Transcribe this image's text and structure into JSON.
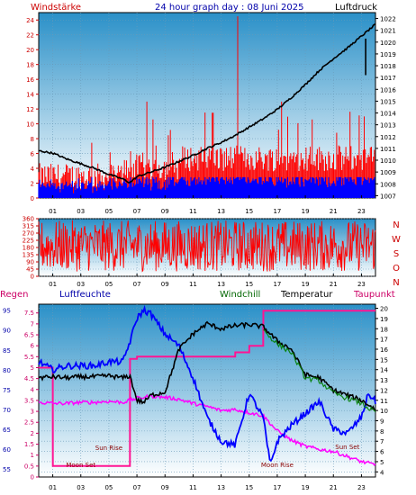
{
  "header": {
    "left_label": "Windstärke",
    "title": "24 hour graph day : 08 Juni 2025",
    "right_label": "Luftdruck"
  },
  "colors": {
    "wind": "#ff0000",
    "gust": "#0000ff",
    "pressure": "#000000",
    "temperature": "#000000",
    "windchill": "#008000",
    "humidity": "#0000ff",
    "dewpoint": "#ff00ff",
    "rain": "#ff1493"
  },
  "chart_data": [
    {
      "type": "line",
      "id": "wind-pressure",
      "x_tick_labels": [
        "01",
        "03",
        "05",
        "07",
        "09",
        "11",
        "13",
        "15",
        "17",
        "19",
        "21",
        "23"
      ],
      "x_range_hours": [
        0,
        24
      ],
      "left_axis": {
        "label": "Windstärke",
        "ticks": [
          0,
          2,
          4,
          6,
          8,
          10,
          12,
          14,
          16,
          18,
          20,
          22,
          24
        ],
        "ylim": [
          0,
          25
        ]
      },
      "right_axis": {
        "label": "Luftdruck",
        "ticks": [
          1007,
          1008,
          1009,
          1010,
          1011,
          1012,
          1013,
          1014,
          1015,
          1016,
          1017,
          1018,
          1019,
          1020,
          1021,
          1022
        ],
        "ylim": [
          1006.8,
          1022.5
        ]
      },
      "series": [
        {
          "name": "Luftdruck",
          "axis": "right",
          "x": [
            0,
            1,
            2,
            3,
            4,
            5,
            6,
            6.5,
            7,
            8,
            9,
            10,
            11,
            12,
            13,
            14,
            15,
            16,
            17,
            18,
            19,
            20,
            21,
            22,
            23,
            23.5,
            24
          ],
          "y": [
            1010.8,
            1010.6,
            1010.1,
            1009.7,
            1009.3,
            1008.8,
            1008.4,
            1008.1,
            1008.6,
            1009.0,
            1009.4,
            1009.9,
            1010.4,
            1011.0,
            1011.5,
            1012.1,
            1012.8,
            1013.5,
            1014.3,
            1015.3,
            1016.4,
            1017.6,
            1018.6,
            1019.5,
            1020.5,
            1021.0,
            1021.5
          ]
        }
      ]
    },
    {
      "type": "line",
      "id": "wind-direction",
      "x_tick_labels": [
        "01",
        "03",
        "05",
        "07",
        "09",
        "11",
        "13",
        "15",
        "17",
        "19",
        "21",
        "23"
      ],
      "y_ticks": [
        0,
        45,
        90,
        135,
        180,
        225,
        270,
        315,
        360
      ],
      "ylim": [
        0,
        360
      ],
      "compass_labels": [
        "N",
        "W",
        "S",
        "O",
        "N"
      ]
    },
    {
      "type": "line",
      "id": "temp-humidity",
      "x_tick_labels": [
        "01",
        "03",
        "05",
        "07",
        "09",
        "11",
        "13",
        "15",
        "17",
        "19",
        "21",
        "23"
      ],
      "legend": [
        "Regen",
        "Luftfeuchte",
        "Windchill",
        "Temperatur",
        "Taupunkt"
      ],
      "humidity_axis": {
        "ticks": [
          55,
          60,
          65,
          70,
          75,
          80,
          85,
          90,
          95
        ],
        "ylim": [
          53,
          96.5
        ]
      },
      "rain_axis": {
        "ticks": [
          "0",
          "0.5",
          "1",
          "1.5",
          "2",
          "2.5",
          "3",
          "3.5",
          "4",
          "4.5",
          "5",
          "5.5",
          "6",
          "6.5",
          "7",
          "7.5"
        ],
        "ylim": [
          0,
          7.9
        ]
      },
      "temp_axis": {
        "ticks": [
          4,
          5,
          6,
          7,
          8,
          9,
          10,
          11,
          12,
          13,
          14,
          15,
          16,
          17,
          18,
          19,
          20
        ],
        "ylim": [
          3.5,
          20.4
        ]
      },
      "series": [
        {
          "name": "Temperatur",
          "axis": "temp",
          "x": [
            0,
            1,
            2,
            3,
            4,
            5,
            6,
            6.5,
            7,
            7.5,
            8,
            9,
            10,
            11,
            12,
            13,
            14,
            15,
            16,
            17,
            18,
            19,
            20,
            21,
            22,
            23,
            24
          ],
          "y": [
            13.2,
            13.3,
            13.2,
            13.3,
            13.3,
            13.4,
            13.2,
            13.4,
            11.0,
            10.8,
            11.5,
            11.8,
            16.0,
            17.5,
            18.5,
            18.0,
            18.3,
            18.4,
            18.2,
            16.8,
            16.0,
            13.5,
            13.2,
            12.0,
            11.5,
            11.0,
            10.1
          ]
        },
        {
          "name": "Luftfeuchte",
          "axis": "humidity",
          "x": [
            0,
            1,
            2,
            3,
            4,
            5,
            6,
            6.5,
            7,
            7.5,
            8,
            9,
            10,
            11,
            12,
            13,
            14,
            15,
            16,
            16.5,
            17,
            18,
            19,
            20,
            21,
            22,
            23,
            23.5,
            24
          ],
          "y": [
            82,
            80,
            81,
            81,
            81,
            82,
            82,
            87,
            93,
            95,
            94,
            89,
            86,
            78,
            68,
            62,
            61,
            74,
            68,
            56,
            62,
            66,
            69,
            72,
            65,
            64,
            68,
            74,
            72
          ]
        },
        {
          "name": "Taupunkt",
          "axis": "temp",
          "x": [
            0,
            1,
            2,
            3,
            4,
            5,
            6,
            7,
            8,
            9,
            10,
            11,
            12,
            13,
            14,
            15,
            16,
            17,
            18,
            19,
            20,
            21,
            22,
            23,
            24
          ],
          "y": [
            10.8,
            10.7,
            10.7,
            10.8,
            10.8,
            10.9,
            10.8,
            11.2,
            11.4,
            11.3,
            11.1,
            10.7,
            10.4,
            10.0,
            10.1,
            9.8,
            9.5,
            8.0,
            7.1,
            6.5,
            6.2,
            6.0,
            5.5,
            5.0,
            4.7
          ]
        },
        {
          "name": "Regen",
          "axis": "rain",
          "x": [
            0,
            1,
            1.01,
            5,
            5.01,
            6.5,
            6.51,
            7,
            7.01,
            14,
            14.01,
            15,
            15.01,
            16,
            16.01,
            23.5,
            23.6,
            24
          ],
          "y": [
            5.0,
            5.0,
            0.5,
            0.5,
            0.5,
            0.5,
            5.4,
            5.4,
            5.5,
            5.5,
            5.7,
            5.7,
            6.0,
            6.0,
            7.6,
            7.6,
            7.6,
            7.6
          ]
        }
      ],
      "annotations": [
        {
          "text": "Sun Rise",
          "hour": 5.0
        },
        {
          "text": "Moon Set",
          "hour": 3.0
        },
        {
          "text": "Moon Rise",
          "hour": 17.0
        },
        {
          "text": "Sun Set",
          "hour": 22.0
        }
      ]
    }
  ]
}
